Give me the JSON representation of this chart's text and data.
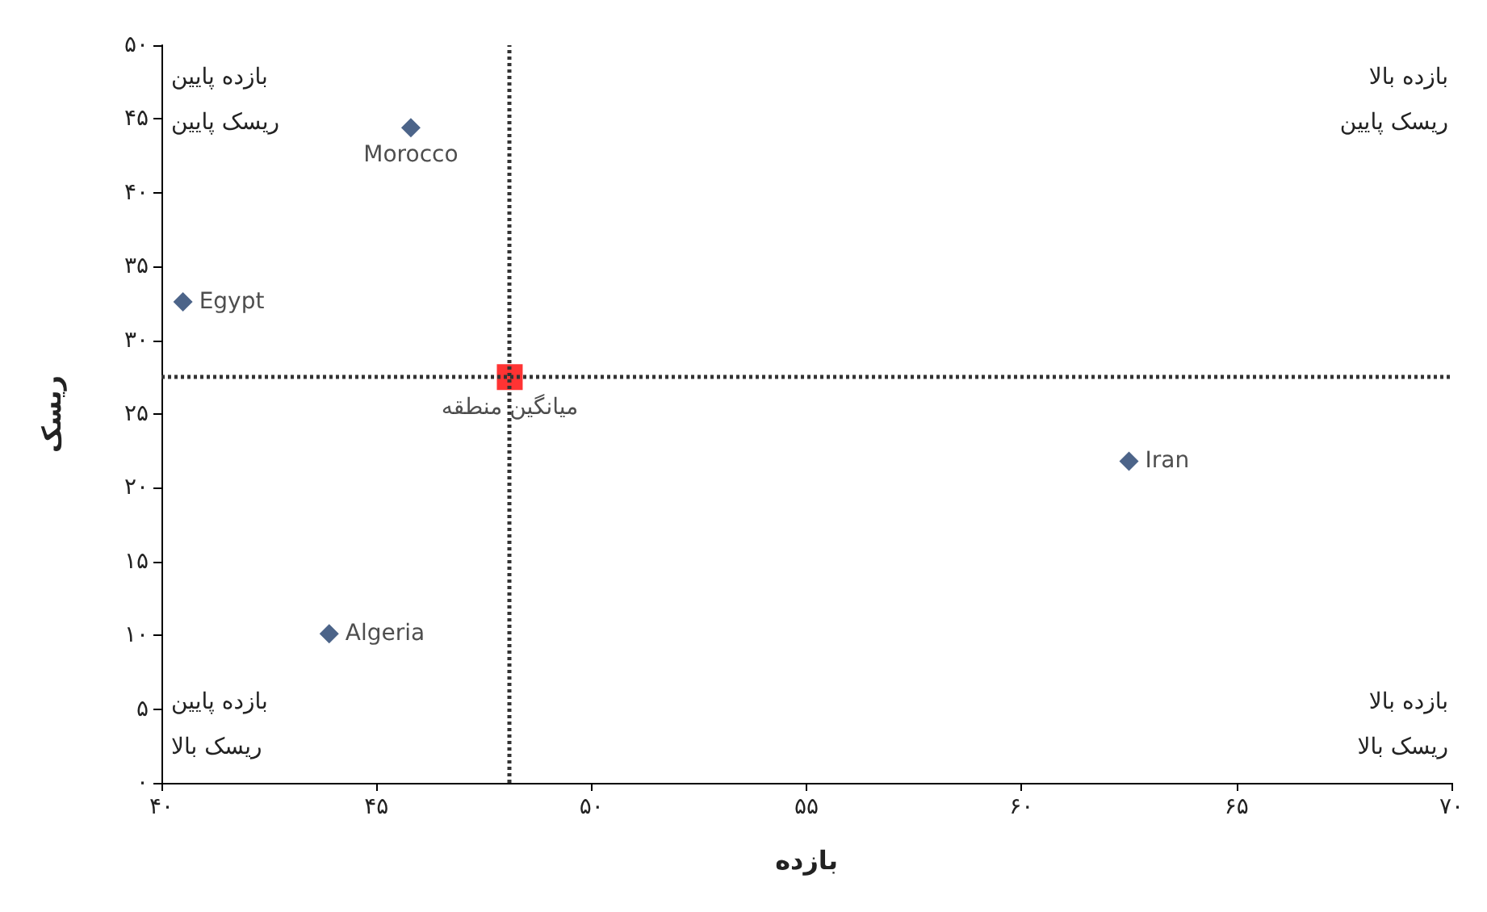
{
  "chart_data": {
    "type": "scatter",
    "xlabel": "بازده",
    "ylabel": "ریسک",
    "xlim": [
      40,
      70
    ],
    "ylim": [
      0,
      50
    ],
    "xticks": [
      {
        "value": 40,
        "label": "۴۰"
      },
      {
        "value": 45,
        "label": "۴۵"
      },
      {
        "value": 50,
        "label": "۵۰"
      },
      {
        "value": 55,
        "label": "۵۵"
      },
      {
        "value": 60,
        "label": "۶۰"
      },
      {
        "value": 65,
        "label": "۶۵"
      },
      {
        "value": 70,
        "label": "۷۰"
      }
    ],
    "yticks": [
      {
        "value": 0,
        "label": "۰"
      },
      {
        "value": 5,
        "label": "۵"
      },
      {
        "value": 10,
        "label": "۱۰"
      },
      {
        "value": 15,
        "label": "۱۵"
      },
      {
        "value": 20,
        "label": "۲۰"
      },
      {
        "value": 25,
        "label": "۲۵"
      },
      {
        "value": 30,
        "label": "۳۰"
      },
      {
        "value": 35,
        "label": "۳۵"
      },
      {
        "value": 40,
        "label": "۴۰"
      },
      {
        "value": 45,
        "label": "۴۵"
      },
      {
        "value": 50,
        "label": "۵۰"
      }
    ],
    "grid": false,
    "legend": false,
    "series": [
      {
        "name": "Morocco",
        "color": "#1f3d6b",
        "marker": "diamond",
        "x": [
          45.8
        ],
        "values": [
          44.4
        ]
      },
      {
        "name": "Egypt",
        "color": "#1f3d6b",
        "marker": "diamond",
        "x": [
          40.5
        ],
        "values": [
          32.6
        ]
      },
      {
        "name": "Algeria",
        "color": "#1f3d6b",
        "marker": "diamond",
        "x": [
          43.9
        ],
        "values": [
          10.1
        ]
      },
      {
        "name": "Iran",
        "color": "#1f3d6b",
        "marker": "diamond",
        "x": [
          62.5
        ],
        "values": [
          21.8
        ]
      },
      {
        "name": "میانگین منطقه",
        "color": "#ff0000",
        "marker": "square",
        "x": [
          48.1
        ],
        "values": [
          27.5
        ]
      }
    ],
    "ref_lines": [
      {
        "axis": "x",
        "value": 48.1,
        "label": null,
        "color": "#333333",
        "line_style": "dotted"
      },
      {
        "axis": "y",
        "value": 27.5,
        "label": null,
        "color": "#333333",
        "line_style": "dotted"
      }
    ],
    "annotations": [
      "بازده پایین\nریسک پایین",
      "بازده بالا\nریسک پایین",
      "بازده پایین\nریسک بالا",
      "بازده بالا\nریسک بالا"
    ]
  }
}
